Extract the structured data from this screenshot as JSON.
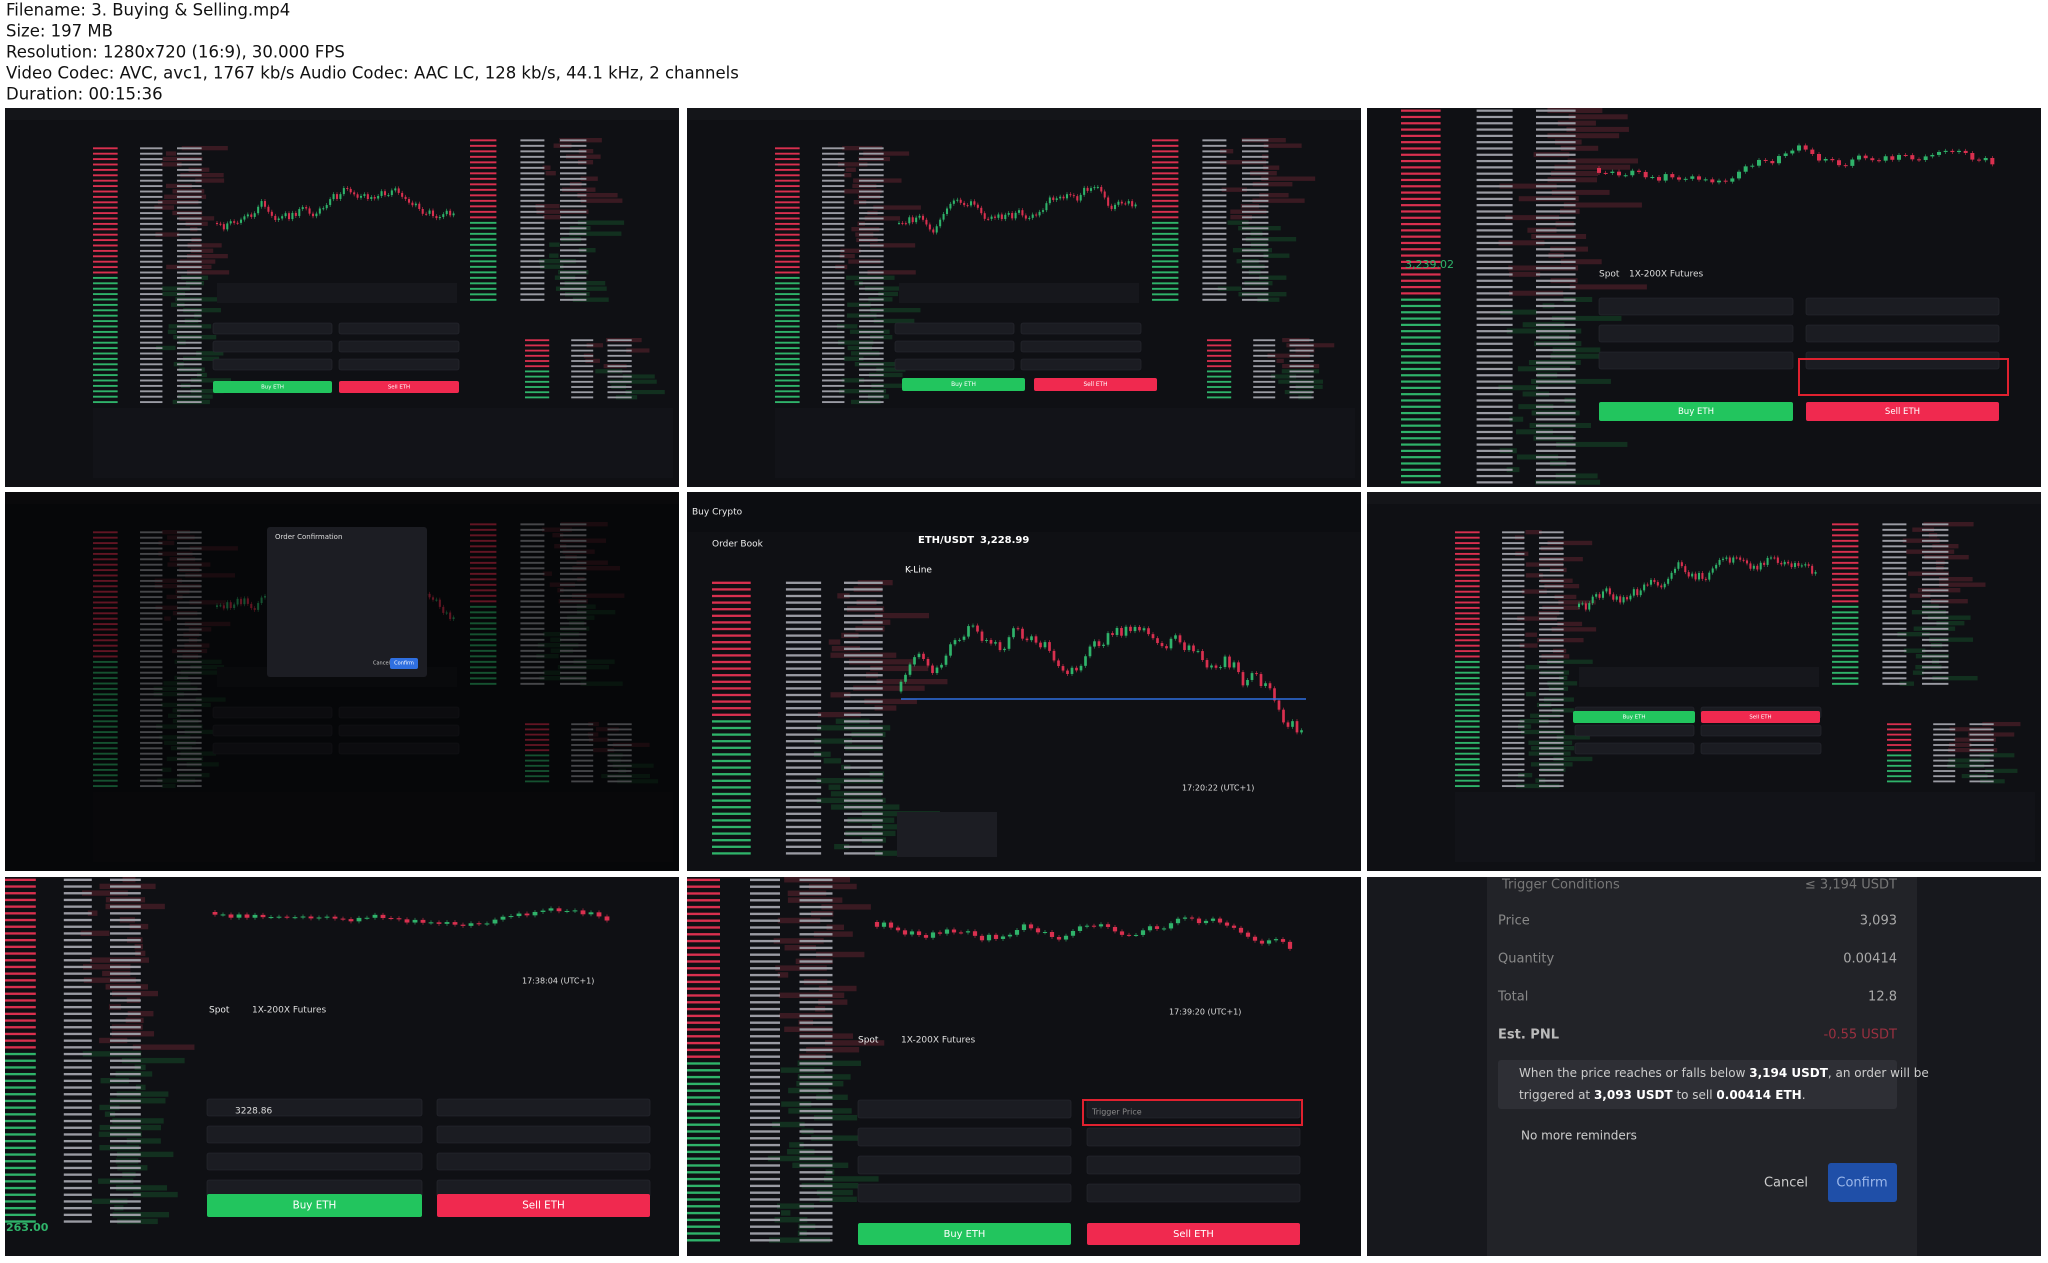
{
  "header": {
    "lines": [
      "Filename: 3. Buying & Selling.mp4",
      "Size: 197 MB",
      "Resolution: 1280x720 (16:9), 30.000 FPS",
      "Video Codec: AVC, avc1, 1767 kb/s Audio Codec: AAC LC, 128 kb/s, 44.1 kHz, 2 channels",
      "Duration: 00:15:36"
    ]
  },
  "thumbnails": [
    {
      "buy": "Buy ETH",
      "sell": "Sell ETH"
    },
    {
      "buy": "Buy ETH",
      "sell": "Sell ETH"
    },
    {
      "price": "3,239.02",
      "market": "Spot",
      "futures": "1X-200X Futures",
      "buy": "Buy ETH",
      "sell": "Sell ETH"
    },
    {
      "dialog_title": "Order Confirmation",
      "cancel": "Cancel",
      "confirm": "Confirm"
    },
    {
      "nav": "Buy Crypto",
      "order_book": "Order Book",
      "pair": "ETH/USDT",
      "price": "3,228.99",
      "chart_tab": "K-Line",
      "time": "17:20:22 (UTC+1)"
    },
    {
      "buy": "Buy ETH",
      "sell": "Sell ETH"
    },
    {
      "market": "Spot",
      "futures": "1X-200X Futures",
      "price_input": "3228.86",
      "time": "17:38:04 (UTC+1)",
      "last_price": "263.00",
      "buy": "Buy ETH",
      "sell": "Sell ETH"
    },
    {
      "market": "Spot",
      "futures": "1X-200X Futures",
      "trigger": "Trigger Price",
      "time": "17:39:20 (UTC+1)",
      "buy": "Buy ETH",
      "sell": "Sell ETH"
    },
    {
      "dialog": {
        "title": "Trigger Conditions",
        "condition": "≤ 3,194 USDT",
        "price_label": "Price",
        "price": "3,093",
        "quantity_label": "Quantity",
        "quantity": "0.00414",
        "total_label": "Total",
        "total": "12.8",
        "pnl_label": "Est. PNL",
        "pnl": "-0.55 USDT",
        "message_line1": [
          "When the price reaches or falls below ",
          "3,194 USDT",
          ", an order will be"
        ],
        "message_line2": [
          "triggered at ",
          "3,093 USDT",
          " to sell ",
          "0.00414 ETH",
          "."
        ],
        "reminder": "No more reminders",
        "cancel": "Cancel",
        "confirm": "Confirm"
      }
    }
  ]
}
